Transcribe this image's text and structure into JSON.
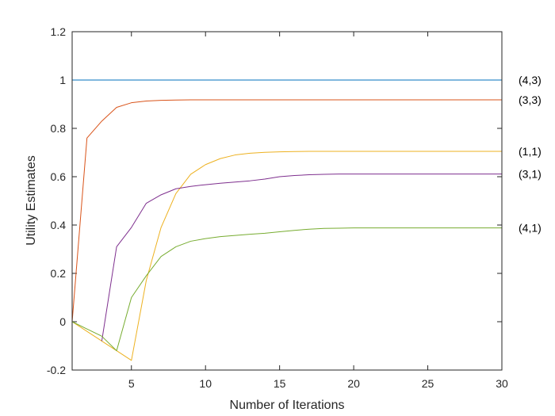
{
  "chart_data": {
    "type": "line",
    "title": "",
    "xlabel": "Number of Iterations",
    "ylabel": "Utility Estimates",
    "xlim": [
      1,
      30
    ],
    "ylim": [
      -0.2,
      1.2
    ],
    "xticks": [
      5,
      10,
      15,
      20,
      25,
      30
    ],
    "yticks": [
      -0.2,
      0,
      0.2,
      0.4,
      0.6,
      0.8,
      1,
      1.2
    ],
    "xtick_labels": [
      "5",
      "10",
      "15",
      "20",
      "25",
      "30"
    ],
    "ytick_labels": [
      "-0.2",
      "0",
      "0.2",
      "0.4",
      "0.6",
      "0.8",
      "1",
      "1.2"
    ],
    "grid": false,
    "box": true,
    "x": [
      1,
      2,
      3,
      4,
      5,
      6,
      7,
      8,
      9,
      10,
      11,
      12,
      13,
      14,
      15,
      16,
      17,
      18,
      19,
      20,
      21,
      22,
      23,
      24,
      25,
      26,
      27,
      28,
      29,
      30
    ],
    "series": [
      {
        "name": "(4,3)",
        "color": "#0072BD",
        "values": [
          1,
          1,
          1,
          1,
          1,
          1,
          1,
          1,
          1,
          1,
          1,
          1,
          1,
          1,
          1,
          1,
          1,
          1,
          1,
          1,
          1,
          1,
          1,
          1,
          1,
          1,
          1,
          1,
          1,
          1
        ]
      },
      {
        "name": "(3,3)",
        "color": "#D95319",
        "values": [
          0,
          0.76,
          0.83,
          0.887,
          0.906,
          0.913,
          0.916,
          0.917,
          0.918,
          0.918,
          0.918,
          0.918,
          0.918,
          0.918,
          0.918,
          0.918,
          0.918,
          0.918,
          0.918,
          0.918,
          0.918,
          0.918,
          0.918,
          0.918,
          0.918,
          0.918,
          0.918,
          0.918,
          0.918,
          0.918
        ]
      },
      {
        "name": "(1,1)",
        "color": "#EDB120",
        "values": [
          0,
          -0.04,
          -0.08,
          -0.12,
          -0.16,
          0.17,
          0.39,
          0.53,
          0.61,
          0.65,
          0.675,
          0.69,
          0.697,
          0.701,
          0.703,
          0.704,
          0.705,
          0.705,
          0.705,
          0.705,
          0.705,
          0.705,
          0.705,
          0.705,
          0.705,
          0.705,
          0.705,
          0.705,
          0.705,
          0.705
        ]
      },
      {
        "name": "(3,1)",
        "color": "#7E2F8E",
        "values": [
          null,
          null,
          -0.08,
          0.31,
          0.39,
          0.49,
          0.525,
          0.55,
          0.56,
          0.567,
          0.573,
          0.578,
          0.583,
          0.59,
          0.6,
          0.605,
          0.608,
          0.61,
          0.611,
          0.611,
          0.611,
          0.611,
          0.611,
          0.611,
          0.611,
          0.611,
          0.611,
          0.611,
          0.611,
          0.611
        ]
      },
      {
        "name": "(4,1)",
        "color": "#77AC30",
        "values": [
          0,
          -0.03,
          -0.06,
          -0.12,
          0.1,
          0.19,
          0.27,
          0.31,
          0.333,
          0.344,
          0.352,
          0.357,
          0.362,
          0.366,
          0.372,
          0.378,
          0.383,
          0.386,
          0.387,
          0.388,
          0.388,
          0.388,
          0.388,
          0.388,
          0.388,
          0.388,
          0.388,
          0.388,
          0.388,
          0.388
        ]
      }
    ],
    "series_labels": [
      {
        "text": "(4,3)",
        "y": 1.0
      },
      {
        "text": "(3,3)",
        "y": 0.918
      },
      {
        "text": "(1,1)",
        "y": 0.705
      },
      {
        "text": "(3,1)",
        "y": 0.611
      },
      {
        "text": "(4,1)",
        "y": 0.388
      }
    ]
  }
}
